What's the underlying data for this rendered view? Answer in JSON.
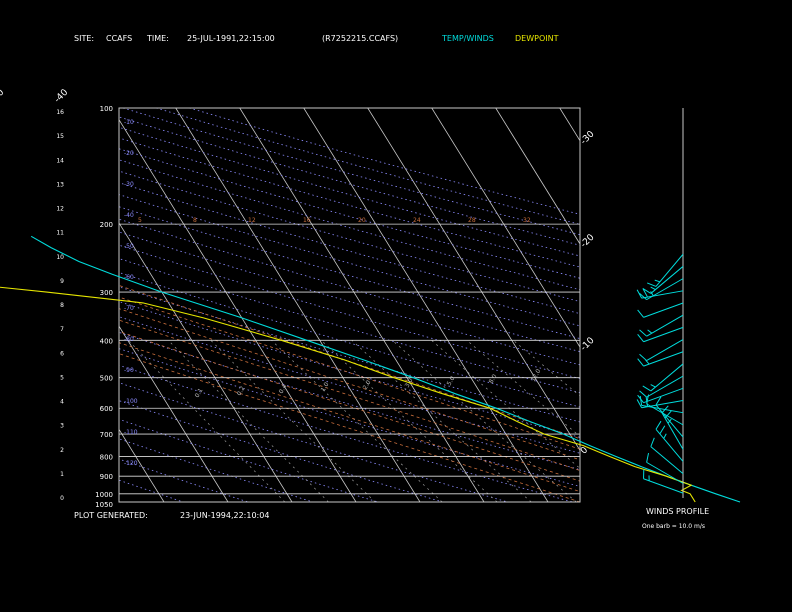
{
  "header": {
    "site_label": "SITE:",
    "site_value": "CCAFS",
    "time_label": "TIME:",
    "time_value": "25-JUL-1991,22:15:00",
    "file_id": "(R7252215.CCAFS)",
    "legend_temp": "TEMP/WINDS",
    "legend_dew": "DEWPOINT"
  },
  "footer": {
    "generated_label": "PLOT GENERATED:",
    "generated_value": "23-JUN-1994,22:10:04"
  },
  "wind_panel": {
    "title": "WINDS PROFILE",
    "note": "One barb = 10.0 m/s"
  },
  "colors": {
    "temp": "#00dcdc",
    "dewpoint": "#e6e600",
    "isotherm": "#c8c8c8",
    "dry_adiabat": "#8c8cff",
    "moist_adiabat": "#c86e3c",
    "text": "#ffffff"
  },
  "chart_data": {
    "type": "line",
    "pressure_levels": [
      100,
      200,
      300,
      400,
      500,
      600,
      700,
      800,
      900,
      1000,
      1050
    ],
    "pressure_labels": [
      "100",
      "200",
      "300",
      "400",
      "500",
      "600",
      "700",
      "800",
      "900",
      "1000",
      "1050"
    ],
    "height_ticks": [
      "16",
      "15",
      "14",
      "13",
      "12",
      "11",
      "10",
      "9",
      "8",
      "7",
      "6",
      "5",
      "4",
      "3",
      "2",
      "1",
      "0"
    ],
    "isotherm_labels_top": [
      "-110",
      "-100",
      "-90",
      "-80",
      "-70",
      "-60",
      "-50",
      "-40"
    ],
    "isotherm_labels_right": [
      "-30",
      "-20",
      "-10",
      "0",
      "10",
      "20",
      "30"
    ],
    "dry_adiabat_labels": [
      "-10",
      "-20",
      "-30",
      "-40",
      "-50",
      "-60",
      "-70",
      "-80",
      "-90",
      "-100",
      "-110",
      "-120"
    ],
    "mixing_ratio_labels": [
      "0.1",
      "0.2",
      "0.4",
      "1.0",
      "2.0",
      "3.0",
      "5.0",
      "8.0",
      "12.0"
    ],
    "moist_labels": [
      "5",
      "8",
      "12",
      "16",
      "20",
      "24",
      "28",
      "32"
    ],
    "temp_profile": [
      [
        1050,
        30
      ],
      [
        1000,
        27
      ],
      [
        950,
        24
      ],
      [
        900,
        21
      ],
      [
        850,
        18
      ],
      [
        800,
        15
      ],
      [
        750,
        12
      ],
      [
        700,
        9
      ],
      [
        650,
        5
      ],
      [
        600,
        1
      ],
      [
        550,
        -4
      ],
      [
        500,
        -9
      ],
      [
        450,
        -15
      ],
      [
        400,
        -22
      ],
      [
        350,
        -30
      ],
      [
        300,
        -40
      ],
      [
        270,
        -46
      ],
      [
        250,
        -50
      ],
      [
        230,
        -53
      ],
      [
        215,
        -55
      ]
    ],
    "dew_profile": [
      [
        1050,
        23
      ],
      [
        1000,
        23
      ],
      [
        980,
        22
      ],
      [
        950,
        24
      ],
      [
        900,
        21
      ],
      [
        850,
        17
      ],
      [
        800,
        14
      ],
      [
        750,
        11
      ],
      [
        700,
        6
      ],
      [
        650,
        3
      ],
      [
        600,
        0
      ],
      [
        550,
        -6
      ],
      [
        500,
        -12
      ],
      [
        450,
        -18
      ],
      [
        400,
        -26
      ],
      [
        350,
        -36
      ],
      [
        320,
        -44
      ],
      [
        300,
        -58
      ],
      [
        290,
        -66
      ],
      [
        270,
        -74
      ],
      [
        250,
        -80
      ],
      [
        230,
        -84
      ],
      [
        215,
        -86
      ]
    ],
    "wind_barbs": [
      {
        "h": 0.2,
        "dir": 290,
        "speed": 5
      },
      {
        "h": 0.6,
        "dir": 300,
        "speed": 10
      },
      {
        "h": 1.0,
        "dir": 310,
        "speed": 10
      },
      {
        "h": 1.5,
        "dir": 320,
        "speed": 15
      },
      {
        "h": 2.0,
        "dir": 330,
        "speed": 15
      },
      {
        "h": 2.5,
        "dir": 320,
        "speed": 10
      },
      {
        "h": 3.0,
        "dir": 300,
        "speed": 10
      },
      {
        "h": 3.5,
        "dir": 280,
        "speed": 20
      },
      {
        "h": 4.0,
        "dir": 260,
        "speed": 10
      },
      {
        "h": 4.5,
        "dir": 250,
        "speed": 10
      },
      {
        "h": 5.0,
        "dir": 240,
        "speed": 10
      },
      {
        "h": 5.5,
        "dir": 230,
        "speed": 5
      },
      {
        "h": 6.0,
        "dir": 250,
        "speed": 5
      },
      {
        "h": 6.5,
        "dir": 240,
        "speed": 10
      },
      {
        "h": 7.0,
        "dir": 250,
        "speed": 10
      },
      {
        "h": 7.5,
        "dir": 240,
        "speed": 5
      },
      {
        "h": 8.0,
        "dir": 250,
        "speed": 10
      },
      {
        "h": 8.5,
        "dir": 260,
        "speed": 15
      },
      {
        "h": 9.0,
        "dir": 240,
        "speed": 10
      },
      {
        "h": 9.5,
        "dir": 230,
        "speed": 5
      },
      {
        "h": 10.0,
        "dir": 220,
        "speed": 5
      }
    ]
  }
}
